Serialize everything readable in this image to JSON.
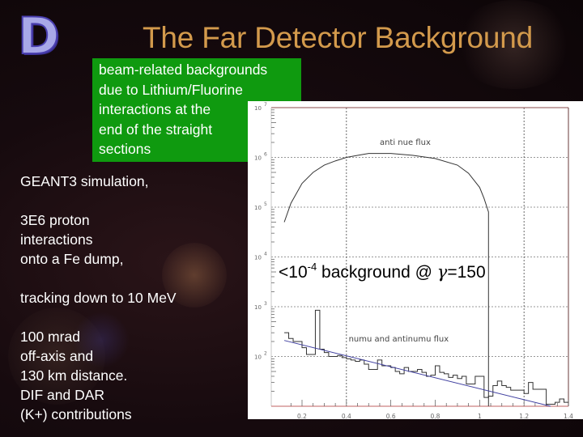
{
  "slide": {
    "logo_letter": "D",
    "title": "The Far Detector Background",
    "highlight_box": {
      "lines": [
        "beam-related backgrounds",
        "due to Lithium/Fluorine",
        "interactions at the",
        "end of the straight",
        "sections"
      ]
    },
    "left_text": {
      "lines": [
        "GEANT3 simulation,",
        "",
        "3E6 proton",
        "interactions",
        "onto a Fe dump,",
        "",
        "tracking down to 10 MeV",
        "",
        "100 mrad",
        "off-axis and",
        "130 km distance.",
        "DIF and DAR",
        "(K+) contributions"
      ]
    },
    "annotation": {
      "prefix": "<10",
      "exponent": "-4",
      "middle": " background @ ",
      "greek": "γ",
      "suffix": "=150"
    },
    "colors": {
      "title": "#d39a4c",
      "highlight_box": "#0f9a0f",
      "logo_fill": "#a8a8e8",
      "logo_stroke": "#4a3fb0",
      "fit_line": "#4040a0",
      "axis_baseline": "#c06060"
    }
  },
  "chart_data": {
    "type": "line",
    "title": "",
    "xlabel": "",
    "ylabel": "",
    "yscale": "log",
    "xlim": [
      0.12,
      1.4
    ],
    "ylim": [
      10,
      10000000
    ],
    "x_ticks": [
      "0.2",
      "0.4",
      "0.6",
      "0.8",
      "1",
      "1.2",
      "1.4"
    ],
    "y_ticks": [
      "10^2",
      "10^3",
      "10^4",
      "10^5",
      "10^6",
      "10^7"
    ],
    "grid": true,
    "labels": [
      {
        "text": "anti nue flux",
        "x": 0.55,
        "y": 1800000
      },
      {
        "text": "numu and antinumu flux",
        "x": 0.41,
        "y": 200
      }
    ],
    "series": [
      {
        "name": "anti nue flux",
        "style": "curve",
        "x": [
          0.12,
          0.15,
          0.2,
          0.25,
          0.3,
          0.35,
          0.4,
          0.45,
          0.5,
          0.55,
          0.6,
          0.7,
          0.8,
          0.9,
          0.95,
          1.0,
          1.02,
          1.04,
          1.04
        ],
        "y": [
          50000,
          120000,
          300000,
          500000,
          700000,
          850000,
          1000000,
          1100000,
          1200000,
          1200000,
          1200000,
          1100000,
          950000,
          700000,
          480000,
          250000,
          150000,
          80000,
          10
        ]
      },
      {
        "name": "numu and antinumu flux",
        "style": "histogram",
        "x": [
          0.12,
          0.14,
          0.16,
          0.18,
          0.2,
          0.22,
          0.24,
          0.26,
          0.28,
          0.3,
          0.32,
          0.34,
          0.36,
          0.38,
          0.4,
          0.42,
          0.44,
          0.46,
          0.48,
          0.5,
          0.52,
          0.54,
          0.56,
          0.58,
          0.6,
          0.62,
          0.64,
          0.66,
          0.68,
          0.7,
          0.72,
          0.74,
          0.76,
          0.78,
          0.8,
          0.82,
          0.84,
          0.86,
          0.88,
          0.9,
          0.92,
          0.94,
          0.96,
          0.98,
          1.0,
          1.02,
          1.04,
          1.06,
          1.08,
          1.1,
          1.12,
          1.14,
          1.16,
          1.18,
          1.2,
          1.22,
          1.24,
          1.26,
          1.28,
          1.3,
          1.32,
          1.34,
          1.36,
          1.38
        ],
        "y": [
          300,
          230,
          200,
          200,
          150,
          110,
          110,
          850,
          140,
          120,
          100,
          100,
          105,
          95,
          90,
          85,
          80,
          85,
          70,
          55,
          55,
          85,
          65,
          65,
          60,
          50,
          45,
          60,
          50,
          50,
          55,
          48,
          40,
          42,
          65,
          48,
          45,
          38,
          42,
          36,
          40,
          28,
          28,
          40,
          40,
          15,
          16,
          26,
          32,
          26,
          24,
          21,
          21,
          21,
          18,
          30,
          22,
          22,
          22,
          11,
          11,
          12,
          14,
          12
        ]
      },
      {
        "name": "fit",
        "style": "line",
        "color": "#4040a0",
        "x": [
          0.12,
          1.32
        ],
        "y": [
          210,
          10
        ]
      }
    ]
  }
}
